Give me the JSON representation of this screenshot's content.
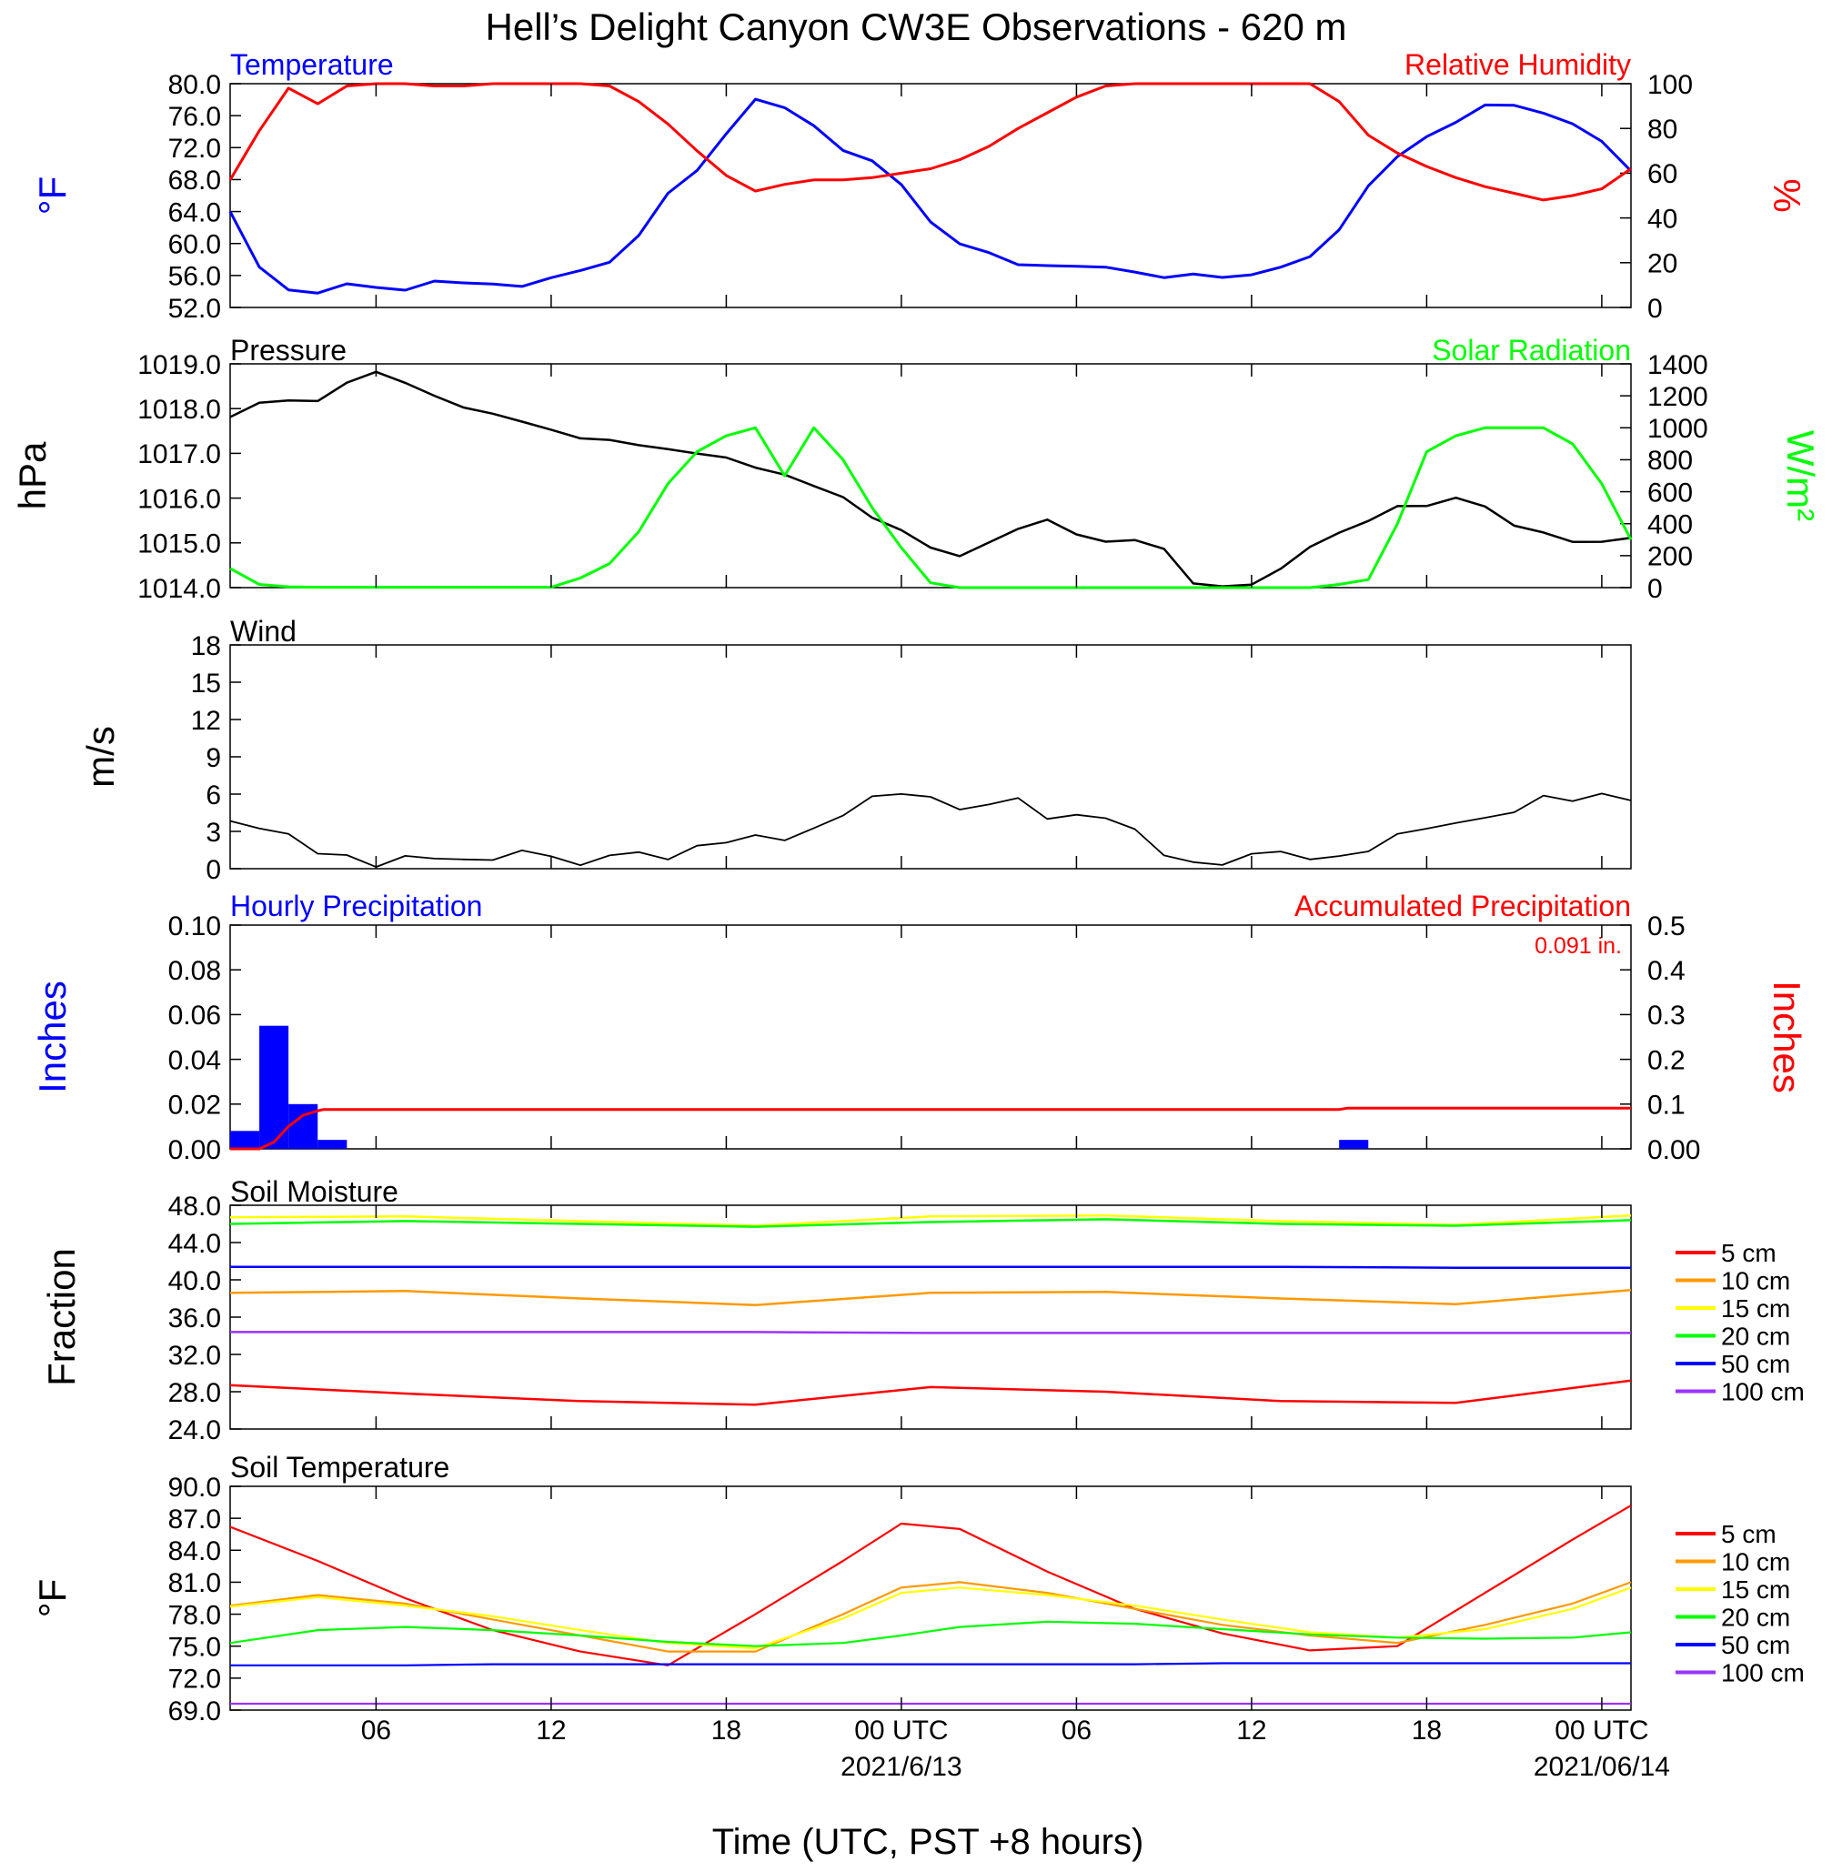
{
  "title": "Hell’s Delight Canyon CW3E Observations - 620 m",
  "time_axis": {
    "xlabel": "Time (UTC, PST +8 hours)",
    "hours_range": [
      0,
      48
    ],
    "ticks": [
      {
        "h": 5,
        "label": "06"
      },
      {
        "h": 11,
        "label": "12"
      },
      {
        "h": 17,
        "label": "18"
      },
      {
        "h": 23,
        "label": "00 UTC",
        "date": "2021/6/13"
      },
      {
        "h": 29,
        "label": "06"
      },
      {
        "h": 35,
        "label": "12"
      },
      {
        "h": 41,
        "label": "18"
      },
      {
        "h": 47,
        "label": "00 UTC",
        "date": "2021/06/14"
      }
    ]
  },
  "colors": {
    "temperature": "#0000ff",
    "humidity": "#ff0000",
    "pressure": "#000000",
    "solar": "#00ff00",
    "wind_speed": "#000000",
    "wind_barb": "#ff0000",
    "hourly_precip": "#0000ff",
    "accum_precip": "#ff0000",
    "depth_5": "#ff0000",
    "depth_10": "#ff9900",
    "depth_15": "#ffff00",
    "depth_20": "#00ff00",
    "depth_50": "#0000ff",
    "depth_100": "#9933ff"
  },
  "panels": {
    "temp_rh": {
      "left_title": "Temperature",
      "right_title": "Relative Humidity",
      "left_unit": "°F",
      "right_unit": "%",
      "left_ticks": [
        "52.0",
        "56.0",
        "60.0",
        "64.0",
        "68.0",
        "72.0",
        "76.0",
        "80.0"
      ],
      "right_ticks": [
        "0",
        "20",
        "40",
        "60",
        "80",
        "100"
      ]
    },
    "pressure_solar": {
      "left_title": "Pressure",
      "right_title": "Solar Radiation",
      "left_unit": "hPa",
      "right_unit": "W/m²",
      "left_ticks": [
        "1014.0",
        "1015.0",
        "1016.0",
        "1017.0",
        "1018.0",
        "1019.0"
      ],
      "right_ticks": [
        "0",
        "200",
        "400",
        "600",
        "800",
        "1000",
        "1200",
        "1400"
      ]
    },
    "wind": {
      "left_title": "Wind",
      "left_unit": "m/s",
      "left_ticks": [
        "0",
        "3",
        "6",
        "9",
        "12",
        "15",
        "18"
      ]
    },
    "precip": {
      "left_title": "Hourly Precipitation",
      "right_title": "Accumulated Precipitation",
      "left_unit": "Inches",
      "right_unit": "Inches",
      "total_label": "0.091 in.",
      "left_ticks": [
        "0.00",
        "0.02",
        "0.04",
        "0.06",
        "0.08",
        "0.10"
      ],
      "right_ticks": [
        "0.00",
        "0.1",
        "0.2",
        "0.3",
        "0.4",
        "0.5"
      ]
    },
    "soil_moisture": {
      "left_title": "Soil Moisture",
      "left_unit": "Fraction",
      "left_ticks": [
        "24.0",
        "28.0",
        "32.0",
        "36.0",
        "40.0",
        "44.0",
        "48.0"
      ],
      "legend": [
        "5 cm",
        "10 cm",
        "15 cm",
        "20 cm",
        "50 cm",
        "100 cm"
      ]
    },
    "soil_temp": {
      "left_title": "Soil Temperature",
      "left_unit": "°F",
      "left_ticks": [
        "69.0",
        "72.0",
        "75.0",
        "78.0",
        "81.0",
        "84.0",
        "87.0",
        "90.0"
      ],
      "legend": [
        "5 cm",
        "10 cm",
        "15 cm",
        "20 cm",
        "50 cm",
        "100 cm"
      ]
    }
  },
  "chart_data": [
    {
      "type": "line",
      "panel": "temp_rh",
      "x_hours": [
        0,
        1,
        2,
        3,
        4,
        5,
        6,
        7,
        8,
        9,
        10,
        11,
        12,
        13,
        14,
        15,
        16,
        17,
        18,
        19,
        20,
        21,
        22,
        23,
        24,
        25,
        26,
        27,
        28,
        29,
        30,
        31,
        32,
        33,
        34,
        35,
        36,
        37,
        38,
        39,
        40,
        41,
        42,
        43,
        44,
        45,
        46,
        47,
        48
      ],
      "series": [
        {
          "name": "Temperature",
          "axis": "left",
          "ylim": [
            52,
            80
          ],
          "values": [
            64,
            57,
            54.5,
            54,
            55,
            54.5,
            54.5,
            55,
            55,
            55,
            54.8,
            55.5,
            56.5,
            58,
            61,
            66.5,
            69,
            74,
            78,
            77,
            75,
            72,
            70,
            67,
            63,
            60,
            58.5,
            57.6,
            57.3,
            57.1,
            56.9,
            56.6,
            56,
            55.8,
            55.8,
            56.3,
            57,
            58.5,
            62,
            67,
            71,
            73.5,
            75.5,
            77,
            77.5,
            76,
            75,
            73,
            69
          ]
        },
        {
          "name": "Relative Humidity",
          "axis": "right",
          "ylim": [
            0,
            100
          ],
          "values": [
            57,
            79,
            98,
            91,
            99,
            100,
            100,
            99,
            99,
            100,
            100,
            100,
            100,
            99,
            92,
            82,
            70,
            59,
            52,
            55,
            57,
            57,
            58,
            60,
            62,
            66,
            72,
            80,
            87,
            94,
            99,
            100,
            100,
            100,
            100,
            100,
            100,
            100,
            92,
            77,
            69,
            63,
            58,
            54,
            51,
            48,
            50,
            53,
            62
          ]
        }
      ]
    },
    {
      "type": "line",
      "panel": "pressure_solar",
      "x_hours": [
        0,
        1,
        2,
        3,
        4,
        5,
        6,
        7,
        8,
        9,
        10,
        11,
        12,
        13,
        14,
        15,
        16,
        17,
        18,
        19,
        20,
        21,
        22,
        23,
        24,
        25,
        26,
        27,
        28,
        29,
        30,
        31,
        32,
        33,
        34,
        35,
        36,
        37,
        38,
        39,
        40,
        41,
        42,
        43,
        44,
        45,
        46,
        47,
        48
      ],
      "series": [
        {
          "name": "Pressure",
          "axis": "left",
          "ylim": [
            1014,
            1019
          ],
          "values": [
            1017.8,
            1018.1,
            1018.2,
            1018.2,
            1018.6,
            1018.8,
            1018.6,
            1018.3,
            1018.0,
            1017.9,
            1017.7,
            1017.5,
            1017.3,
            1017.3,
            1017.2,
            1017.1,
            1017.0,
            1016.9,
            1016.7,
            1016.5,
            1016.3,
            1016.0,
            1015.6,
            1015.3,
            1014.9,
            1014.7,
            1015.0,
            1015.3,
            1015.5,
            1015.2,
            1015.0,
            1015.1,
            1014.9,
            1014.1,
            1014.0,
            1014.1,
            1014.4,
            1014.9,
            1015.2,
            1015.5,
            1015.8,
            1015.8,
            1016.0,
            1015.8,
            1015.4,
            1015.2,
            1015.0,
            1015.0,
            1015.1
          ]
        },
        {
          "name": "Solar Radiation",
          "axis": "right",
          "ylim": [
            0,
            1400
          ],
          "values": [
            120,
            20,
            5,
            2,
            2,
            2,
            2,
            2,
            2,
            2,
            2,
            2,
            60,
            150,
            350,
            650,
            850,
            950,
            1000,
            700,
            1000,
            800,
            500,
            250,
            30,
            0,
            0,
            0,
            0,
            0,
            0,
            0,
            0,
            0,
            0,
            0,
            0,
            0,
            20,
            50,
            400,
            850,
            950,
            1000,
            1000,
            1000,
            900,
            650,
            300
          ]
        }
      ]
    },
    {
      "type": "line",
      "panel": "wind",
      "x_hours": [
        0,
        1,
        2,
        3,
        4,
        5,
        6,
        7,
        8,
        9,
        10,
        11,
        12,
        13,
        14,
        15,
        16,
        17,
        18,
        19,
        20,
        21,
        22,
        23,
        24,
        25,
        26,
        27,
        28,
        29,
        30,
        31,
        32,
        33,
        34,
        35,
        36,
        37,
        38,
        39,
        40,
        41,
        42,
        43,
        44,
        45,
        46,
        47,
        48
      ],
      "series": [
        {
          "name": "Wind Speed",
          "ylim": [
            0,
            20
          ],
          "values": [
            4.5,
            4,
            2.5,
            1.5,
            1,
            0.5,
            0.5,
            1,
            1,
            0.8,
            1,
            0.8,
            0.5,
            1,
            1.2,
            1.5,
            1.5,
            2,
            2.5,
            3,
            4,
            5,
            6,
            6.5,
            6,
            5.5,
            6,
            6,
            5,
            4.5,
            4.5,
            3.5,
            1.5,
            0.5,
            1,
            1.5,
            1.8,
            1.5,
            1.2,
            2,
            2.5,
            3,
            4,
            5,
            5.5,
            6,
            6.5,
            6.5,
            6
          ]
        }
      ]
    },
    {
      "type": "bar",
      "panel": "precip",
      "name": "Hourly Precipitation",
      "ylim": [
        0,
        0.1
      ],
      "bars": [
        {
          "h": 0,
          "value": 0.008
        },
        {
          "h": 1,
          "value": 0.055
        },
        {
          "h": 2,
          "value": 0.02
        },
        {
          "h": 3,
          "value": 0.004
        },
        {
          "h": 38,
          "value": 0.004
        }
      ]
    },
    {
      "type": "line",
      "panel": "precip",
      "name": "Accumulated Precipitation",
      "ylim": [
        0,
        0.5
      ],
      "x_hours": [
        0,
        1,
        1.5,
        2,
        2.5,
        3,
        3.2,
        38,
        38.3,
        48
      ],
      "values": [
        0,
        0,
        0.015,
        0.05,
        0.075,
        0.085,
        0.088,
        0.088,
        0.091,
        0.091
      ]
    },
    {
      "type": "line",
      "panel": "soil_moisture",
      "ylim": [
        24,
        48
      ],
      "x_hours": [
        0,
        6,
        12,
        18,
        24,
        30,
        36,
        42,
        48
      ],
      "series": [
        {
          "name": "5 cm",
          "values": [
            28.7,
            27.8,
            27,
            26.6,
            28.5,
            28,
            27,
            26.8,
            29.2
          ]
        },
        {
          "name": "10 cm",
          "values": [
            38.6,
            38.8,
            38,
            37.3,
            38.6,
            38.7,
            38,
            37.4,
            38.9
          ]
        },
        {
          "name": "15 cm",
          "values": [
            46.7,
            46.8,
            46.3,
            45.8,
            46.8,
            46.9,
            46.3,
            45.9,
            46.9
          ]
        },
        {
          "name": "20 cm",
          "values": [
            46,
            46.3,
            46,
            45.7,
            46.2,
            46.5,
            46,
            45.8,
            46.4
          ]
        },
        {
          "name": "50 cm",
          "values": [
            41.4,
            41.4,
            41.4,
            41.4,
            41.4,
            41.4,
            41.4,
            41.3,
            41.3
          ]
        },
        {
          "name": "100 cm",
          "values": [
            34.4,
            34.4,
            34.4,
            34.4,
            34.3,
            34.3,
            34.3,
            34.3,
            34.3
          ]
        }
      ]
    },
    {
      "type": "line",
      "panel": "soil_temp",
      "ylim": [
        69,
        90
      ],
      "x_hours": [
        0,
        3,
        6,
        9,
        12,
        15,
        18,
        21,
        23,
        25,
        28,
        31,
        34,
        37,
        40,
        43,
        46,
        48
      ],
      "series": [
        {
          "name": "5 cm",
          "values": [
            86.2,
            83,
            79.5,
            76.5,
            74.5,
            73.2,
            78,
            83,
            86.5,
            86,
            82,
            78.5,
            76.2,
            74.6,
            75,
            80,
            85,
            88.2
          ]
        },
        {
          "name": "10 cm",
          "values": [
            78.8,
            79.8,
            79,
            77.5,
            76,
            74.5,
            74.5,
            78,
            80.5,
            81,
            80,
            78.5,
            77,
            76,
            75.3,
            77,
            79,
            81
          ]
        },
        {
          "name": "15 cm",
          "values": [
            78.7,
            79.6,
            78.8,
            77.8,
            76.5,
            75.3,
            74.8,
            77.6,
            80,
            80.5,
            79.8,
            78.8,
            77.5,
            76.3,
            75.8,
            76.6,
            78.5,
            80.5
          ]
        },
        {
          "name": "20 cm",
          "values": [
            75.3,
            76.5,
            76.8,
            76.5,
            76,
            75.4,
            75,
            75.3,
            76,
            76.8,
            77.3,
            77.1,
            76.6,
            76.1,
            75.8,
            75.7,
            75.8,
            76.3
          ]
        },
        {
          "name": "50 cm",
          "values": [
            73.2,
            73.2,
            73.2,
            73.3,
            73.3,
            73.3,
            73.3,
            73.3,
            73.3,
            73.3,
            73.3,
            73.3,
            73.4,
            73.4,
            73.4,
            73.4,
            73.4,
            73.4
          ]
        },
        {
          "name": "100 cm",
          "values": [
            69.6,
            69.6,
            69.6,
            69.6,
            69.6,
            69.6,
            69.6,
            69.6,
            69.6,
            69.6,
            69.6,
            69.6,
            69.6,
            69.6,
            69.6,
            69.6,
            69.6,
            69.6
          ]
        }
      ]
    }
  ]
}
